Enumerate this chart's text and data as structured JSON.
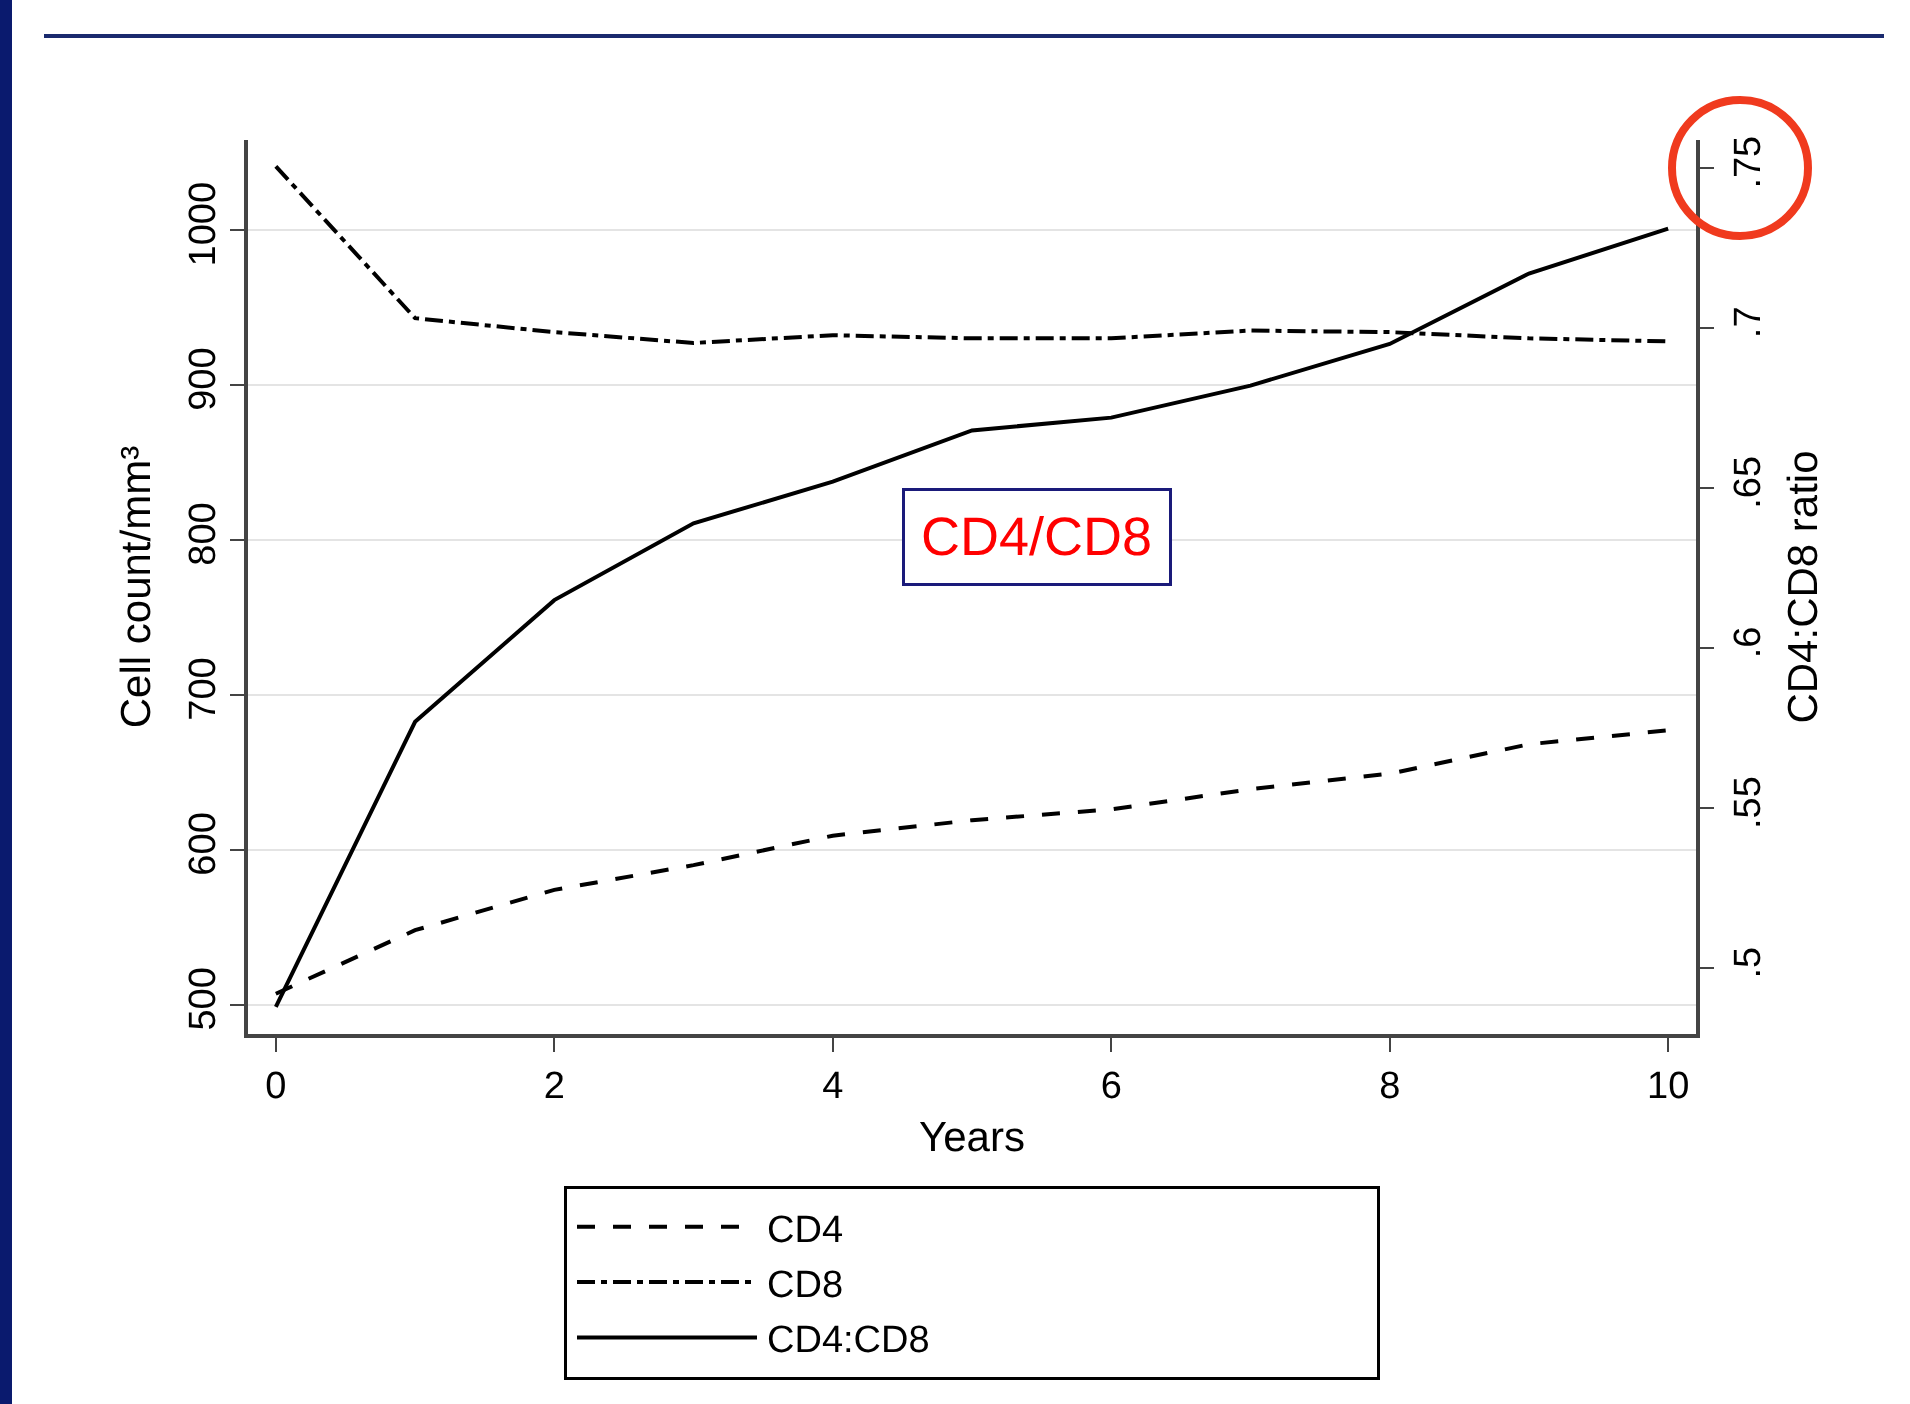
{
  "chart_data": {
    "type": "line",
    "xlabel": "Years",
    "ylabel": "Cell count/mm³",
    "y2label": "CD4:CD8 ratio",
    "x": [
      0,
      1,
      2,
      3,
      4,
      5,
      6,
      7,
      8,
      9,
      10
    ],
    "series": [
      {
        "name": "CD4",
        "color": "#000000",
        "line_style": "dashed",
        "values": [
          507,
          548,
          574,
          590,
          609,
          619,
          626,
          639,
          649,
          668,
          677
        ]
      },
      {
        "name": "CD8",
        "color": "#000000",
        "line_style": "dashdot",
        "values": [
          1041,
          943,
          934,
          927,
          932,
          930,
          930,
          935,
          934,
          930,
          928
        ]
      },
      {
        "name": "CD4:CD8",
        "color": "#000000",
        "line_style": "solid",
        "axis": "y2",
        "values": [
          0.488,
          0.577,
          0.615,
          0.639,
          0.652,
          0.668,
          0.672,
          0.682,
          0.695,
          0.717,
          0.731
        ]
      }
    ],
    "xlim": [
      -0.2,
      10.2
    ],
    "xticks": [
      0,
      2,
      4,
      6,
      8,
      10
    ],
    "ylim": [
      481,
      1058
    ],
    "yticks": [
      500,
      600,
      700,
      800,
      900,
      1000
    ],
    "y2lim": [
      0.4795,
      0.7587
    ],
    "y2ticks": [
      {
        "value": 0.5,
        "label": ".5"
      },
      {
        "value": 0.55,
        "label": ".55"
      },
      {
        "value": 0.6,
        "label": ".6"
      },
      {
        "value": 0.65,
        "label": ".65"
      },
      {
        "value": 0.7,
        "label": ".7"
      },
      {
        "value": 0.75,
        "label": ".75"
      }
    ],
    "annotations": [
      "CD4/CD8"
    ],
    "grid": "y",
    "legend": "bottom",
    "marker": "none"
  }
}
